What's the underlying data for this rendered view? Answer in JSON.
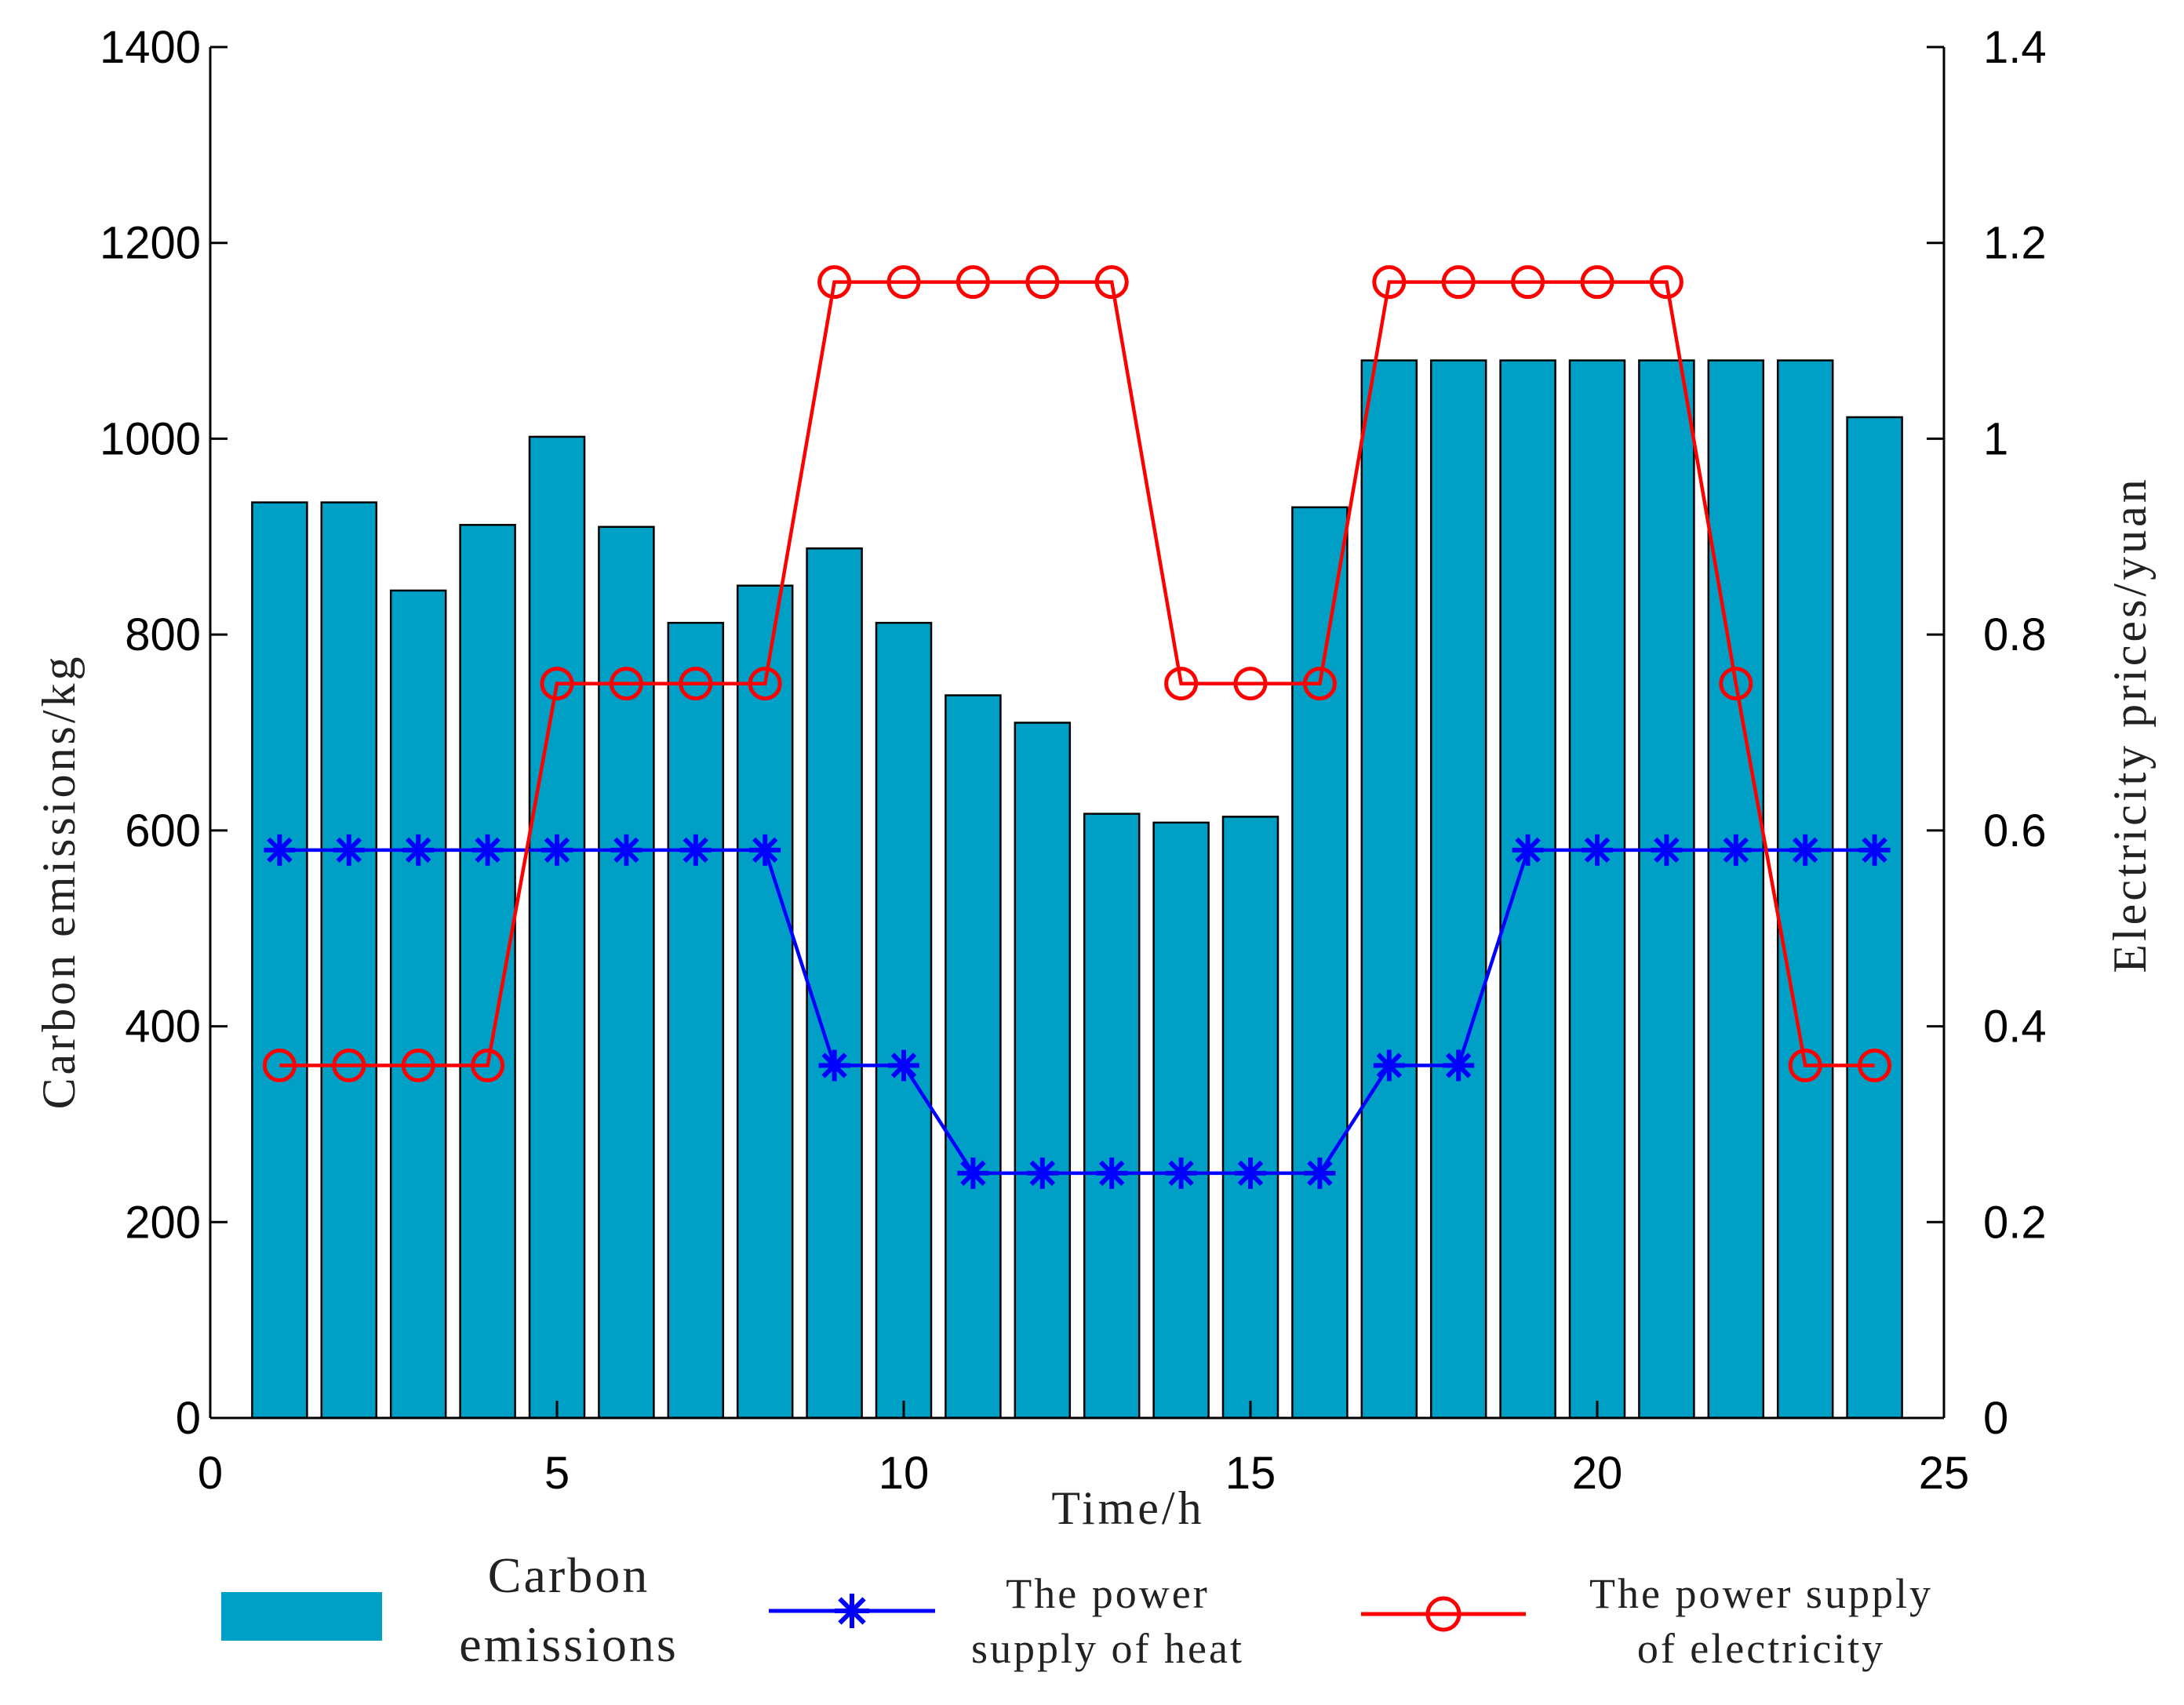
{
  "chart_data": {
    "type": "bar",
    "xlabel": "Time/h",
    "ylabel_left": "Carbon emissions/kg",
    "ylabel_right": "Electricity prices/yuan",
    "xlim": [
      0,
      25
    ],
    "ylim_left": [
      0,
      1400
    ],
    "ylim_right": [
      0,
      1.4
    ],
    "x_ticks": [
      "0",
      "5",
      "10",
      "15",
      "20",
      "25"
    ],
    "y_left_ticks": [
      "0",
      "200",
      "400",
      "600",
      "800",
      "1000",
      "1200",
      "1400"
    ],
    "y_right_ticks": [
      "0",
      "0.2",
      "0.4",
      "0.6",
      "0.8",
      "1",
      "1.2",
      "1.4"
    ],
    "x": [
      1,
      2,
      3,
      4,
      5,
      6,
      7,
      8,
      9,
      10,
      11,
      12,
      13,
      14,
      15,
      16,
      17,
      18,
      19,
      20,
      21,
      22,
      23,
      24
    ],
    "bars": {
      "name": "Carbon emissions",
      "axis": "left",
      "color": "#00a0c6",
      "values": [
        935,
        935,
        845,
        912,
        1002,
        910,
        812,
        850,
        888,
        812,
        738,
        710,
        617,
        608,
        614,
        930,
        1080,
        1080,
        1080,
        1080,
        1080,
        1080,
        1080,
        1022
      ]
    },
    "series": [
      {
        "name": "The power supply of heat",
        "axis": "right",
        "color": "#0000ff",
        "marker": "star",
        "values": [
          0.58,
          0.58,
          0.58,
          0.58,
          0.58,
          0.58,
          0.58,
          0.58,
          0.36,
          0.36,
          0.25,
          0.25,
          0.25,
          0.25,
          0.25,
          0.25,
          0.36,
          0.36,
          0.58,
          0.58,
          0.58,
          0.58,
          0.58,
          0.58
        ]
      },
      {
        "name": "The power supply of electricity",
        "axis": "right",
        "color": "#ff0000",
        "marker": "circle",
        "values": [
          0.36,
          0.36,
          0.36,
          0.36,
          0.75,
          0.75,
          0.75,
          0.75,
          1.16,
          1.16,
          1.16,
          1.16,
          1.16,
          0.75,
          0.75,
          0.75,
          1.16,
          1.16,
          1.16,
          1.16,
          1.16,
          0.75,
          0.36,
          0.36
        ]
      }
    ],
    "legend": {
      "position": "bottom",
      "bars_label_line1": "Carbon",
      "bars_label_line2": "emissions",
      "heat_label_line1": "The power",
      "heat_label_line2": "supply of heat",
      "elec_label_line1": "The power supply",
      "elec_label_line2": "of electricity"
    }
  }
}
